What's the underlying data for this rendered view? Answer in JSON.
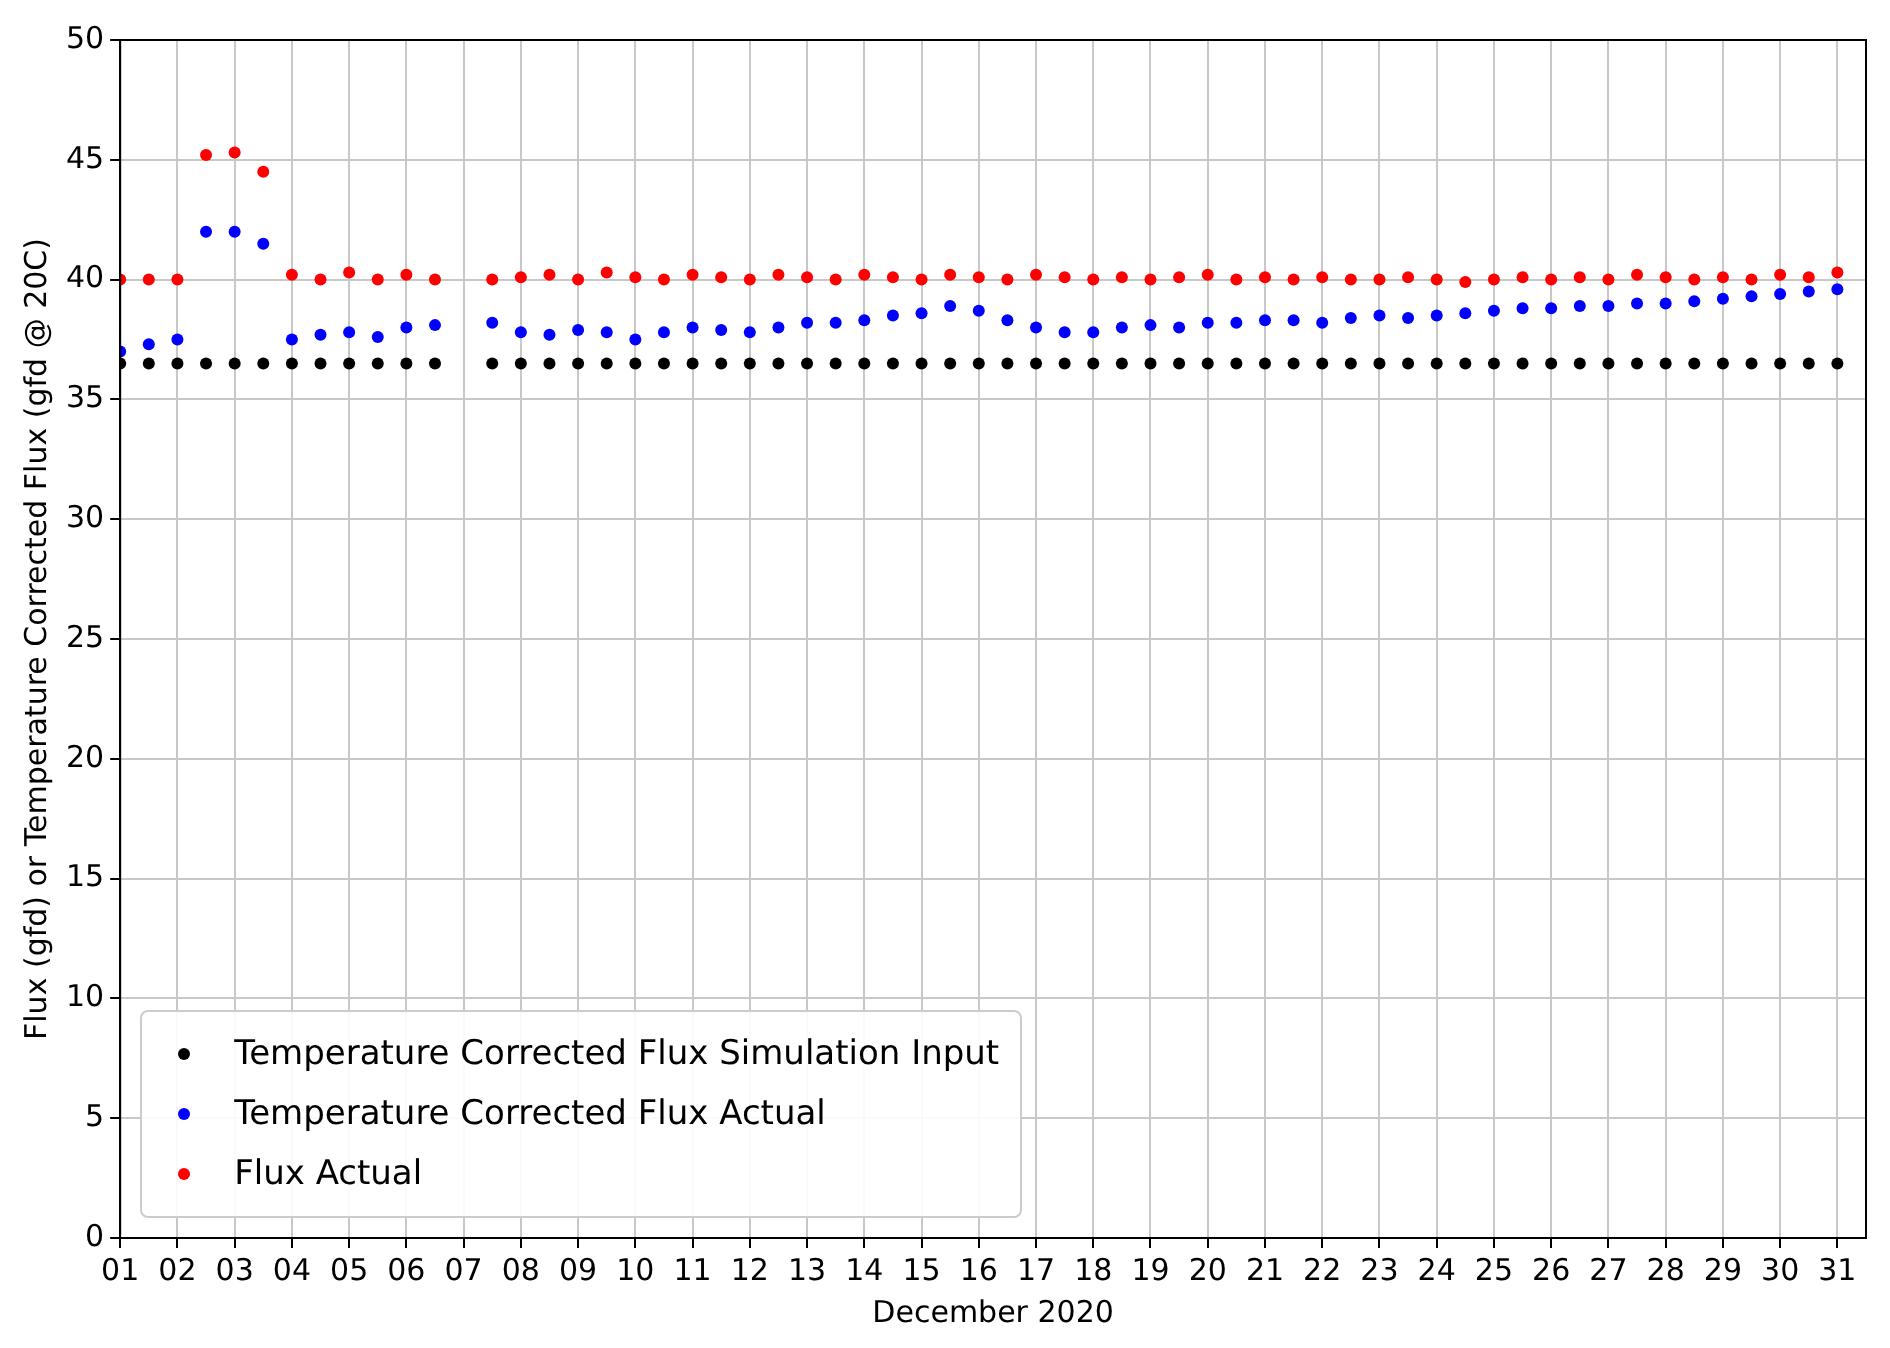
{
  "chart_data": {
    "type": "scatter",
    "xlabel": "December 2020",
    "ylabel": "Flux (gfd) or Temperature Corrected Flux (gfd @ 20C)",
    "x": [
      "2020-12-01T00:00",
      "2020-12-01T12:00",
      "2020-12-02T00:00",
      "2020-12-02T12:00",
      "2020-12-03T00:00",
      "2020-12-03T12:00",
      "2020-12-04T00:00",
      "2020-12-04T12:00",
      "2020-12-05T00:00",
      "2020-12-05T12:00",
      "2020-12-06T00:00",
      "2020-12-06T12:00",
      "2020-12-07T00:00",
      "2020-12-07T12:00",
      "2020-12-08T00:00",
      "2020-12-08T12:00",
      "2020-12-09T00:00",
      "2020-12-09T12:00",
      "2020-12-10T00:00",
      "2020-12-10T12:00",
      "2020-12-11T00:00",
      "2020-12-11T12:00",
      "2020-12-12T00:00",
      "2020-12-12T12:00",
      "2020-12-13T00:00",
      "2020-12-13T12:00",
      "2020-12-14T00:00",
      "2020-12-14T12:00",
      "2020-12-15T00:00",
      "2020-12-15T12:00",
      "2020-12-16T00:00",
      "2020-12-16T12:00",
      "2020-12-17T00:00",
      "2020-12-17T12:00",
      "2020-12-18T00:00",
      "2020-12-18T12:00",
      "2020-12-19T00:00",
      "2020-12-19T12:00",
      "2020-12-20T00:00",
      "2020-12-20T12:00",
      "2020-12-21T00:00",
      "2020-12-21T12:00",
      "2020-12-22T00:00",
      "2020-12-22T12:00",
      "2020-12-23T00:00",
      "2020-12-23T12:00",
      "2020-12-24T00:00",
      "2020-12-24T12:00",
      "2020-12-25T00:00",
      "2020-12-25T12:00",
      "2020-12-26T00:00",
      "2020-12-26T12:00",
      "2020-12-27T00:00",
      "2020-12-27T12:00",
      "2020-12-28T00:00",
      "2020-12-28T12:00",
      "2020-12-29T00:00",
      "2020-12-29T12:00",
      "2020-12-30T00:00",
      "2020-12-30T12:00",
      "2020-12-31T00:00"
    ],
    "series": [
      {
        "name": "Temperature Corrected Flux Simulation Input",
        "color": "#000000",
        "values": [
          36.5,
          36.5,
          36.5,
          36.5,
          36.5,
          36.5,
          36.5,
          36.5,
          36.5,
          36.5,
          36.5,
          36.5,
          null,
          36.5,
          36.5,
          36.5,
          36.5,
          36.5,
          36.5,
          36.5,
          36.5,
          36.5,
          36.5,
          36.5,
          36.5,
          36.5,
          36.5,
          36.5,
          36.5,
          36.5,
          36.5,
          36.5,
          36.5,
          36.5,
          36.5,
          36.5,
          36.5,
          36.5,
          36.5,
          36.5,
          36.5,
          36.5,
          36.5,
          36.5,
          36.5,
          36.5,
          36.5,
          36.5,
          36.5,
          36.5,
          36.5,
          36.5,
          36.5,
          36.5,
          36.5,
          36.5,
          36.5,
          36.5,
          36.5,
          36.5,
          36.5
        ]
      },
      {
        "name": "Temperature Corrected Flux Actual",
        "color": "#0000ff",
        "values": [
          37,
          37.3,
          37.5,
          42,
          42,
          41.5,
          37.5,
          37.7,
          37.8,
          37.6,
          38,
          38.1,
          null,
          38.2,
          37.8,
          37.7,
          37.9,
          37.8,
          37.5,
          37.8,
          38,
          37.9,
          37.8,
          38,
          38.2,
          38.2,
          38.3,
          38.5,
          38.6,
          38.9,
          38.7,
          38.3,
          38,
          37.8,
          37.8,
          38,
          38.1,
          38,
          38.2,
          38.2,
          38.3,
          38.3,
          38.2,
          38.4,
          38.5,
          38.4,
          38.5,
          38.6,
          38.7,
          38.8,
          38.8,
          38.9,
          38.9,
          39,
          39,
          39.1,
          39.2,
          39.3,
          39.4,
          39.5,
          39.6
        ]
      },
      {
        "name": "Flux Actual",
        "color": "#ff0000",
        "values": [
          40,
          40,
          40,
          45.2,
          45.3,
          44.5,
          40.2,
          40,
          40.3,
          40,
          40.2,
          40,
          null,
          40,
          40.1,
          40.2,
          40,
          40.3,
          40.1,
          40,
          40.2,
          40.1,
          40,
          40.2,
          40.1,
          40,
          40.2,
          40.1,
          40,
          40.2,
          40.1,
          40,
          40.2,
          40.1,
          40,
          40.1,
          40,
          40.1,
          40.2,
          40,
          40.1,
          40,
          40.1,
          40,
          40,
          40.1,
          40,
          39.9,
          40,
          40.1,
          40,
          40.1,
          40,
          40.2,
          40.1,
          40,
          40.1,
          40,
          40.2,
          40.1,
          40.3
        ]
      }
    ],
    "xlim": [
      "2020-12-01",
      "2020-12-31T12:00"
    ],
    "xticks": [
      {
        "value": "2020-12-01",
        "label": "01"
      },
      {
        "value": "2020-12-02",
        "label": "02"
      },
      {
        "value": "2020-12-03",
        "label": "03"
      },
      {
        "value": "2020-12-04",
        "label": "04"
      },
      {
        "value": "2020-12-05",
        "label": "05"
      },
      {
        "value": "2020-12-06",
        "label": "06"
      },
      {
        "value": "2020-12-07",
        "label": "07"
      },
      {
        "value": "2020-12-08",
        "label": "08"
      },
      {
        "value": "2020-12-09",
        "label": "09"
      },
      {
        "value": "2020-12-10",
        "label": "10"
      },
      {
        "value": "2020-12-11",
        "label": "11"
      },
      {
        "value": "2020-12-12",
        "label": "12"
      },
      {
        "value": "2020-12-13",
        "label": "13"
      },
      {
        "value": "2020-12-14",
        "label": "14"
      },
      {
        "value": "2020-12-15",
        "label": "15"
      },
      {
        "value": "2020-12-16",
        "label": "16"
      },
      {
        "value": "2020-12-17",
        "label": "17"
      },
      {
        "value": "2020-12-18",
        "label": "18"
      },
      {
        "value": "2020-12-19",
        "label": "19"
      },
      {
        "value": "2020-12-20",
        "label": "20"
      },
      {
        "value": "2020-12-21",
        "label": "21"
      },
      {
        "value": "2020-12-22",
        "label": "22"
      },
      {
        "value": "2020-12-23",
        "label": "23"
      },
      {
        "value": "2020-12-24",
        "label": "24"
      },
      {
        "value": "2020-12-25",
        "label": "25"
      },
      {
        "value": "2020-12-26",
        "label": "26"
      },
      {
        "value": "2020-12-27",
        "label": "27"
      },
      {
        "value": "2020-12-28",
        "label": "28"
      },
      {
        "value": "2020-12-29",
        "label": "29"
      },
      {
        "value": "2020-12-30",
        "label": "30"
      },
      {
        "value": "2020-12-31",
        "label": "31"
      }
    ],
    "ylim": [
      0,
      50
    ],
    "yticks": [
      0,
      5,
      10,
      15,
      20,
      25,
      30,
      35,
      40,
      45,
      50
    ],
    "grid": true,
    "legend": "bottom left",
    "marker": "circle"
  }
}
